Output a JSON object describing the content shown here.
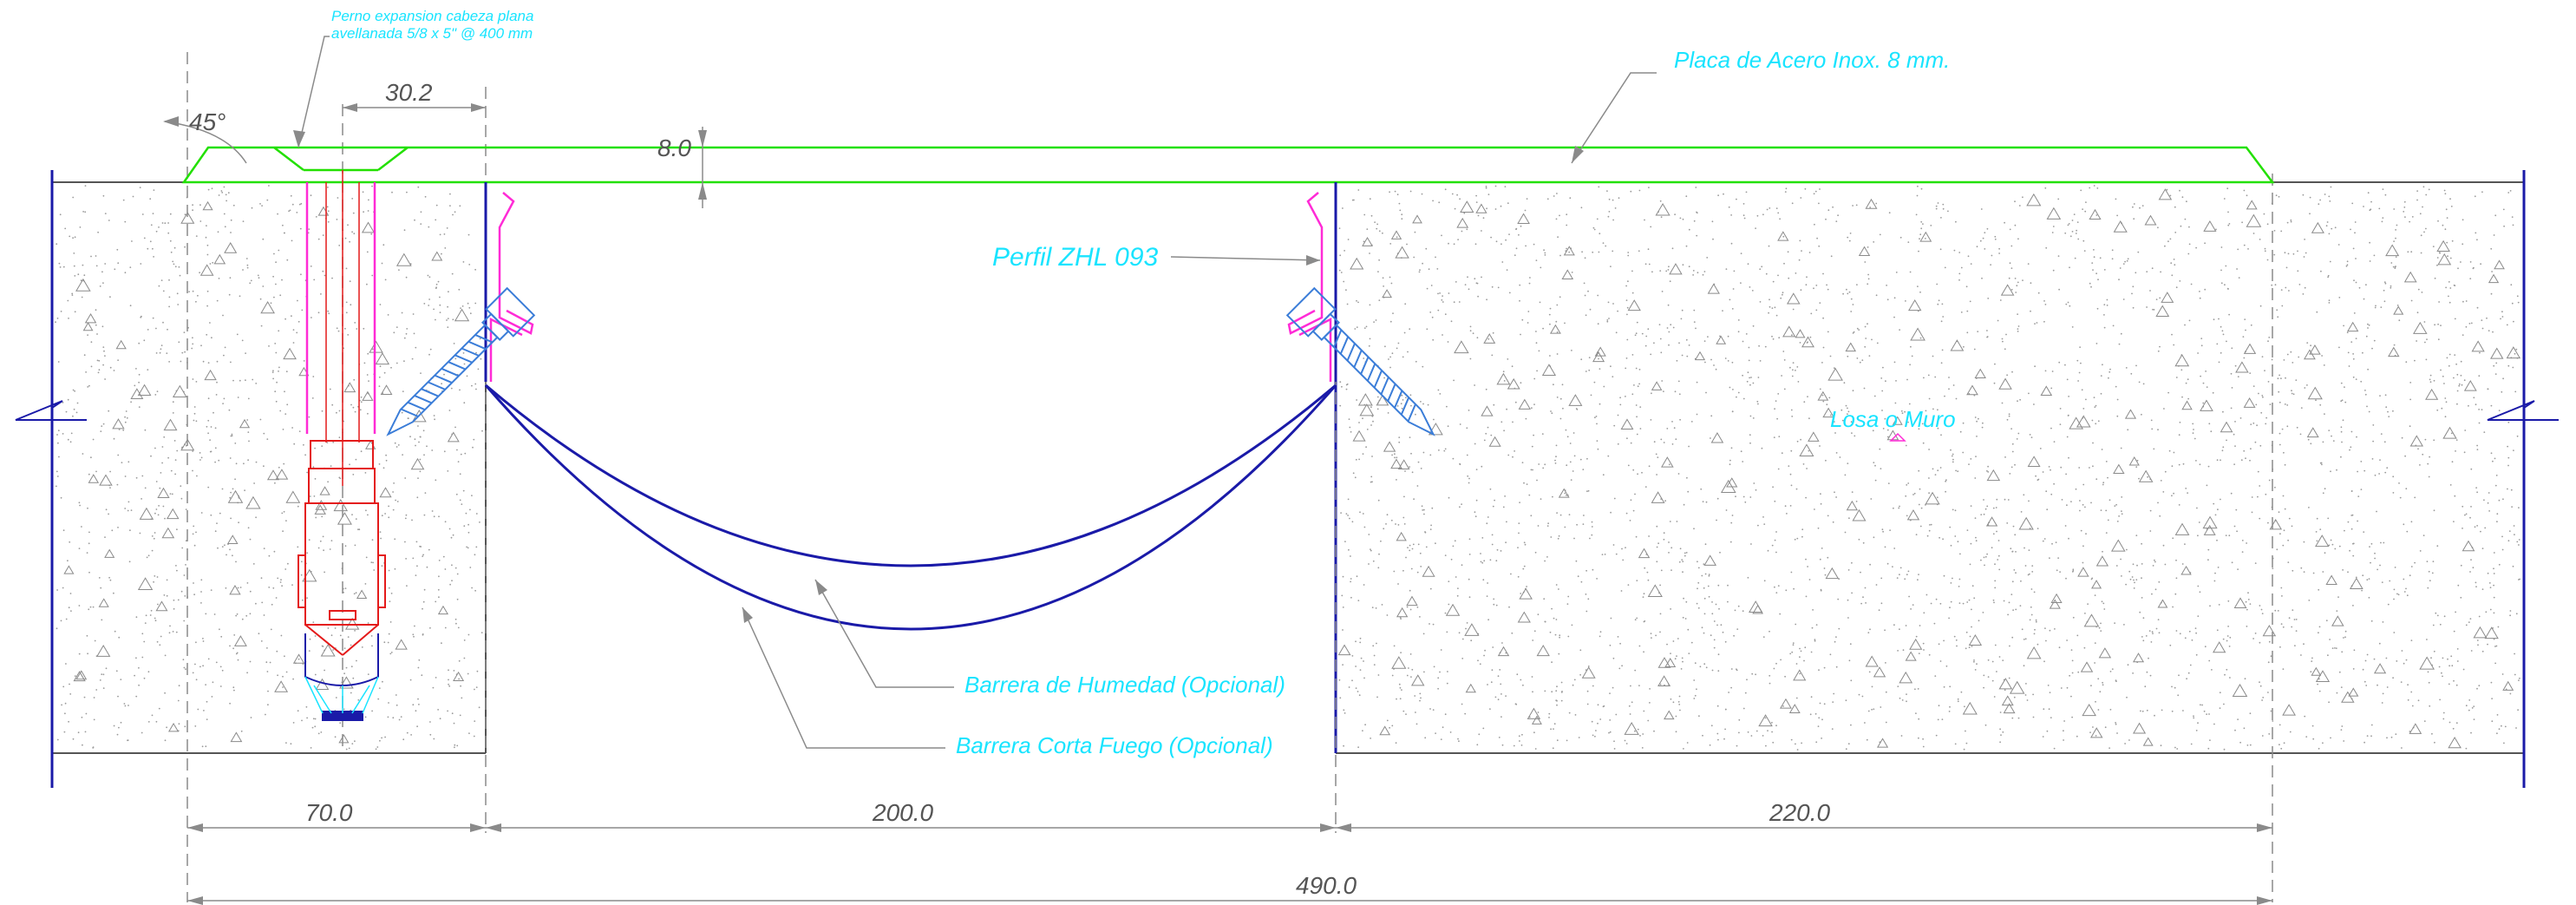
{
  "labels": {
    "anchor_note_line1": "Perno expansion cabeza plana",
    "anchor_note_line2": "avellanada 5/8  x 5\" @ 400 mm",
    "plate": "Placa de Acero Inox. 8 mm.",
    "profile": "Perfil ZHL 093",
    "slab": "Losa o Muro",
    "moisture_barrier": "Barrera de Humedad (Opcional)",
    "fire_barrier": "Barrera Corta Fuego (Opcional)"
  },
  "dimensions": {
    "angle": "45°",
    "bolt_offset": "30.2",
    "plate_thickness": "8.0",
    "left_edge": "70.0",
    "gap": "200.0",
    "right_edge": "220.0",
    "total": "490.0"
  },
  "colors": {
    "concrete_line": "#555555",
    "slab_edge": "#1a1aa8",
    "plate": "#22e000",
    "annotation": "#19e4ff",
    "profile": "#ff2bd6",
    "anchor": "#e41a1a",
    "barrier": "#1a1aa8",
    "screw": "#3b7dd8",
    "dimension": "#8a8a8a"
  }
}
